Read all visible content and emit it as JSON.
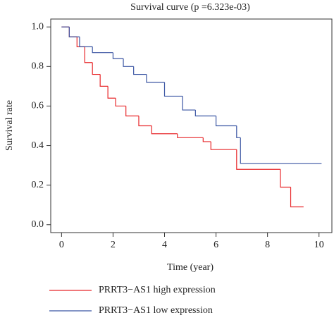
{
  "chart_data": {
    "type": "step-line",
    "title": "Survival curve (p =6.323e-03)",
    "xlabel": "Time (year)",
    "ylabel": "Survival rate",
    "xlim": [
      -0.42,
      10.5
    ],
    "ylim": [
      -0.04,
      1.04
    ],
    "xticks": [
      0,
      2,
      4,
      6,
      8,
      10
    ],
    "yticks": [
      {
        "value": 0,
        "label": "0.0"
      },
      {
        "value": 0.2,
        "label": "0.2"
      },
      {
        "value": 0.4,
        "label": "0.4"
      },
      {
        "value": 0.6,
        "label": "0.6"
      },
      {
        "value": 0.8,
        "label": "0.8"
      },
      {
        "value": 1,
        "label": "1.0"
      }
    ],
    "series": [
      {
        "name": "PRRT3−AS1 high expression",
        "color": "#e8282b",
        "x": [
          0,
          0.3,
          0.6,
          0.9,
          1.2,
          1.5,
          1.8,
          2.1,
          2.5,
          3,
          3.5,
          4.5,
          5.5,
          5.8,
          6.8,
          8.5,
          8.9,
          9.4
        ],
        "values": [
          1,
          0.95,
          0.9,
          0.82,
          0.76,
          0.7,
          0.64,
          0.6,
          0.55,
          0.5,
          0.46,
          0.44,
          0.42,
          0.38,
          0.28,
          0.19,
          0.09,
          0.09
        ]
      },
      {
        "name": "PRRT3−AS1 low expression",
        "color": "#3b56a3",
        "x": [
          0,
          0.3,
          0.7,
          1.2,
          2,
          2.4,
          2.8,
          3.3,
          4,
          4.7,
          5.2,
          6,
          6.8,
          6.95,
          10.1
        ],
        "values": [
          1,
          0.95,
          0.9,
          0.87,
          0.84,
          0.8,
          0.76,
          0.72,
          0.65,
          0.58,
          0.55,
          0.5,
          0.44,
          0.31,
          0.31
        ]
      }
    ]
  }
}
